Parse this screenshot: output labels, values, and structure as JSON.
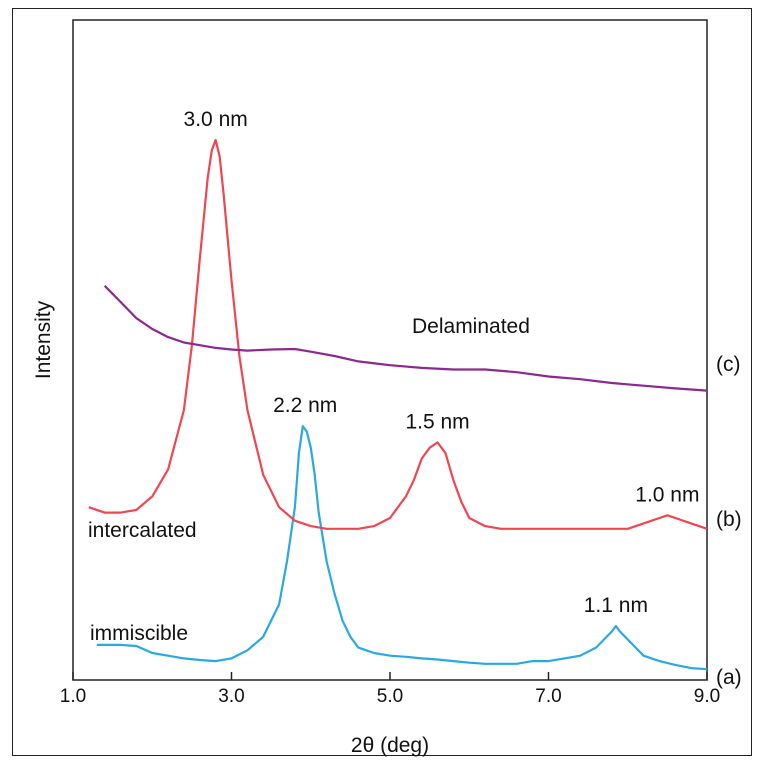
{
  "chart_data": {
    "type": "line",
    "xlabel": "2θ (deg)",
    "ylabel": "Intensity",
    "xlim": [
      1.0,
      9.0
    ],
    "xticks": [
      "1.0",
      "3.0",
      "5.0",
      "7.0",
      "9.0"
    ],
    "grid": false,
    "series": [
      {
        "name": "(a)",
        "curve_label": "immiscible",
        "color": "#29a9e1",
        "x": [
          1.3,
          1.6,
          1.8,
          2.0,
          2.2,
          2.4,
          2.6,
          2.8,
          3.0,
          3.2,
          3.4,
          3.6,
          3.7,
          3.8,
          3.85,
          3.9,
          3.95,
          4.0,
          4.05,
          4.1,
          4.2,
          4.3,
          4.4,
          4.5,
          4.6,
          4.8,
          5.0,
          5.2,
          5.4,
          5.6,
          5.8,
          6.0,
          6.2,
          6.4,
          6.6,
          6.8,
          7.0,
          7.2,
          7.4,
          7.6,
          7.7,
          7.8,
          7.85,
          7.9,
          8.0,
          8.1,
          8.2,
          8.4,
          8.6,
          8.8,
          9.0
        ],
        "y": [
          0.065,
          0.065,
          0.063,
          0.05,
          0.045,
          0.04,
          0.037,
          0.035,
          0.04,
          0.055,
          0.08,
          0.14,
          0.22,
          0.32,
          0.42,
          0.47,
          0.46,
          0.43,
          0.38,
          0.31,
          0.22,
          0.16,
          0.11,
          0.08,
          0.06,
          0.05,
          0.045,
          0.043,
          0.04,
          0.038,
          0.035,
          0.032,
          0.03,
          0.03,
          0.03,
          0.035,
          0.035,
          0.04,
          0.045,
          0.06,
          0.075,
          0.09,
          0.1,
          0.09,
          0.075,
          0.06,
          0.045,
          0.035,
          0.028,
          0.022,
          0.02
        ]
      },
      {
        "name": "(b)",
        "curve_label": "intercalated",
        "color": "#f04650",
        "x": [
          1.2,
          1.4,
          1.6,
          1.8,
          2.0,
          2.2,
          2.4,
          2.5,
          2.6,
          2.7,
          2.75,
          2.8,
          2.85,
          2.9,
          3.0,
          3.1,
          3.2,
          3.4,
          3.6,
          3.8,
          4.0,
          4.2,
          4.4,
          4.6,
          4.8,
          5.0,
          5.2,
          5.3,
          5.4,
          5.5,
          5.6,
          5.7,
          5.8,
          5.9,
          6.0,
          6.2,
          6.4,
          6.8,
          7.2,
          7.6,
          8.0,
          8.2,
          8.4,
          8.5,
          8.6,
          8.8,
          9.0
        ],
        "y": [
          0.32,
          0.31,
          0.31,
          0.315,
          0.34,
          0.39,
          0.5,
          0.62,
          0.78,
          0.93,
          0.98,
          1.0,
          0.97,
          0.9,
          0.74,
          0.6,
          0.5,
          0.38,
          0.32,
          0.295,
          0.285,
          0.28,
          0.28,
          0.28,
          0.285,
          0.3,
          0.34,
          0.37,
          0.41,
          0.43,
          0.44,
          0.42,
          0.37,
          0.33,
          0.3,
          0.285,
          0.28,
          0.28,
          0.28,
          0.28,
          0.28,
          0.29,
          0.3,
          0.305,
          0.3,
          0.29,
          0.28
        ]
      },
      {
        "name": "(c)",
        "curve_label": "Delaminated",
        "color": "#8b2a8e",
        "x": [
          1.4,
          1.6,
          1.8,
          2.0,
          2.2,
          2.4,
          2.6,
          2.8,
          3.0,
          3.2,
          3.5,
          3.8,
          4.0,
          4.3,
          4.6,
          5.0,
          5.4,
          5.8,
          6.2,
          6.6,
          7.0,
          7.4,
          7.8,
          8.2,
          8.6,
          9.0
        ],
        "y": [
          0.73,
          0.7,
          0.67,
          0.65,
          0.635,
          0.625,
          0.62,
          0.615,
          0.612,
          0.61,
          0.612,
          0.613,
          0.608,
          0.6,
          0.59,
          0.583,
          0.578,
          0.575,
          0.575,
          0.57,
          0.562,
          0.557,
          0.55,
          0.545,
          0.54,
          0.536
        ]
      }
    ],
    "annotations": [
      {
        "text": "3.0 nm",
        "x": 2.8,
        "y": 1.0
      },
      {
        "text": "2.2 nm",
        "x": 3.93,
        "y": 0.47
      },
      {
        "text": "1.5 nm",
        "x": 5.6,
        "y": 0.44
      },
      {
        "text": "1.0 nm",
        "x": 8.5,
        "y": 0.305
      },
      {
        "text": "1.1 nm",
        "x": 7.85,
        "y": 0.1
      }
    ]
  }
}
